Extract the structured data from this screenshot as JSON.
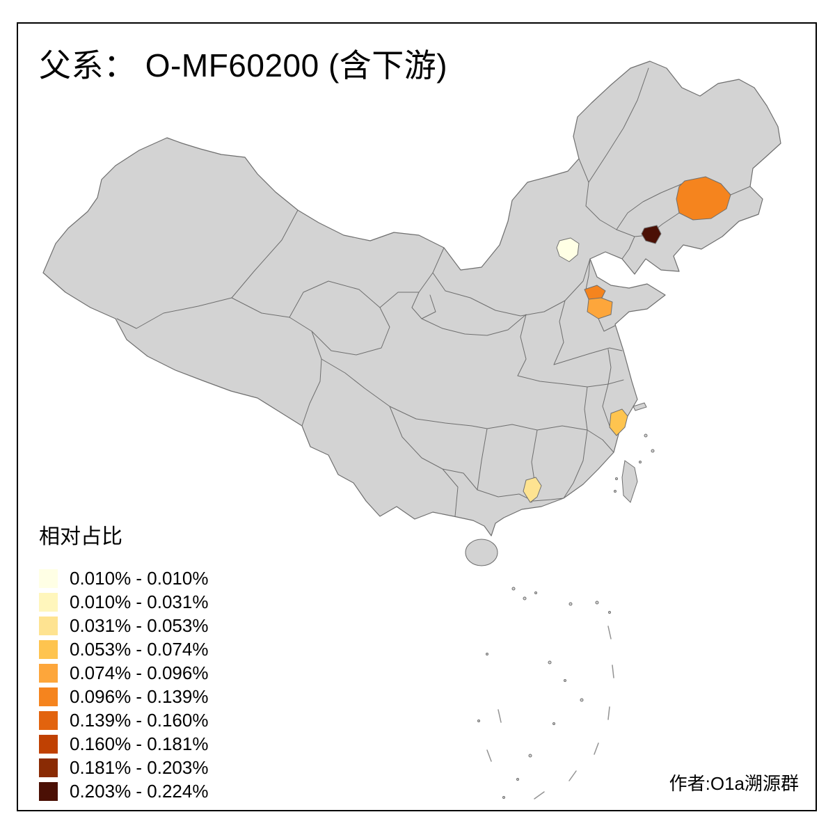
{
  "title": "父系： O-MF60200 (含下游)",
  "author": "作者:O1a溯源群",
  "legend": {
    "title": "相对占比",
    "entries": [
      {
        "range": "0.010% - 0.010%",
        "color": "#FFFFE5"
      },
      {
        "range": "0.010% - 0.031%",
        "color": "#FFF6BC"
      },
      {
        "range": "0.031% - 0.053%",
        "color": "#FEE391"
      },
      {
        "range": "0.053% - 0.074%",
        "color": "#FEC44F"
      },
      {
        "range": "0.074% - 0.096%",
        "color": "#FDA63B"
      },
      {
        "range": "0.096% - 0.139%",
        "color": "#F5841E"
      },
      {
        "range": "0.139% - 0.160%",
        "color": "#E2630E"
      },
      {
        "range": "0.160% - 0.181%",
        "color": "#C04102"
      },
      {
        "range": "0.181% - 0.203%",
        "color": "#8A2B04"
      },
      {
        "range": "0.203% - 0.224%",
        "color": "#4B1005"
      }
    ]
  },
  "map": {
    "land_color": "#D3D3D3",
    "border_color": "#6E6E6E",
    "sea_color": "#FFFFFF",
    "highlighted_regions": [
      {
        "id": "northeast-large-orange",
        "color": "#F5841E",
        "range": "0.096% - 0.139%"
      },
      {
        "id": "northeast-small-dark",
        "color": "#4B1005",
        "range": "0.203% - 0.224%"
      },
      {
        "id": "beijing-pale",
        "color": "#FFFFE5",
        "range": "0.010% - 0.010%"
      },
      {
        "id": "central-east-upper-orange",
        "color": "#F5841E",
        "range": "0.096% - 0.139%"
      },
      {
        "id": "central-east-lower-amber",
        "color": "#FDA63B",
        "range": "0.074% - 0.096%"
      },
      {
        "id": "east-coast-gold",
        "color": "#FEC44F",
        "range": "0.053% - 0.074%"
      },
      {
        "id": "south-coast-yellow",
        "color": "#FEE391",
        "range": "0.031% - 0.053%"
      }
    ]
  }
}
